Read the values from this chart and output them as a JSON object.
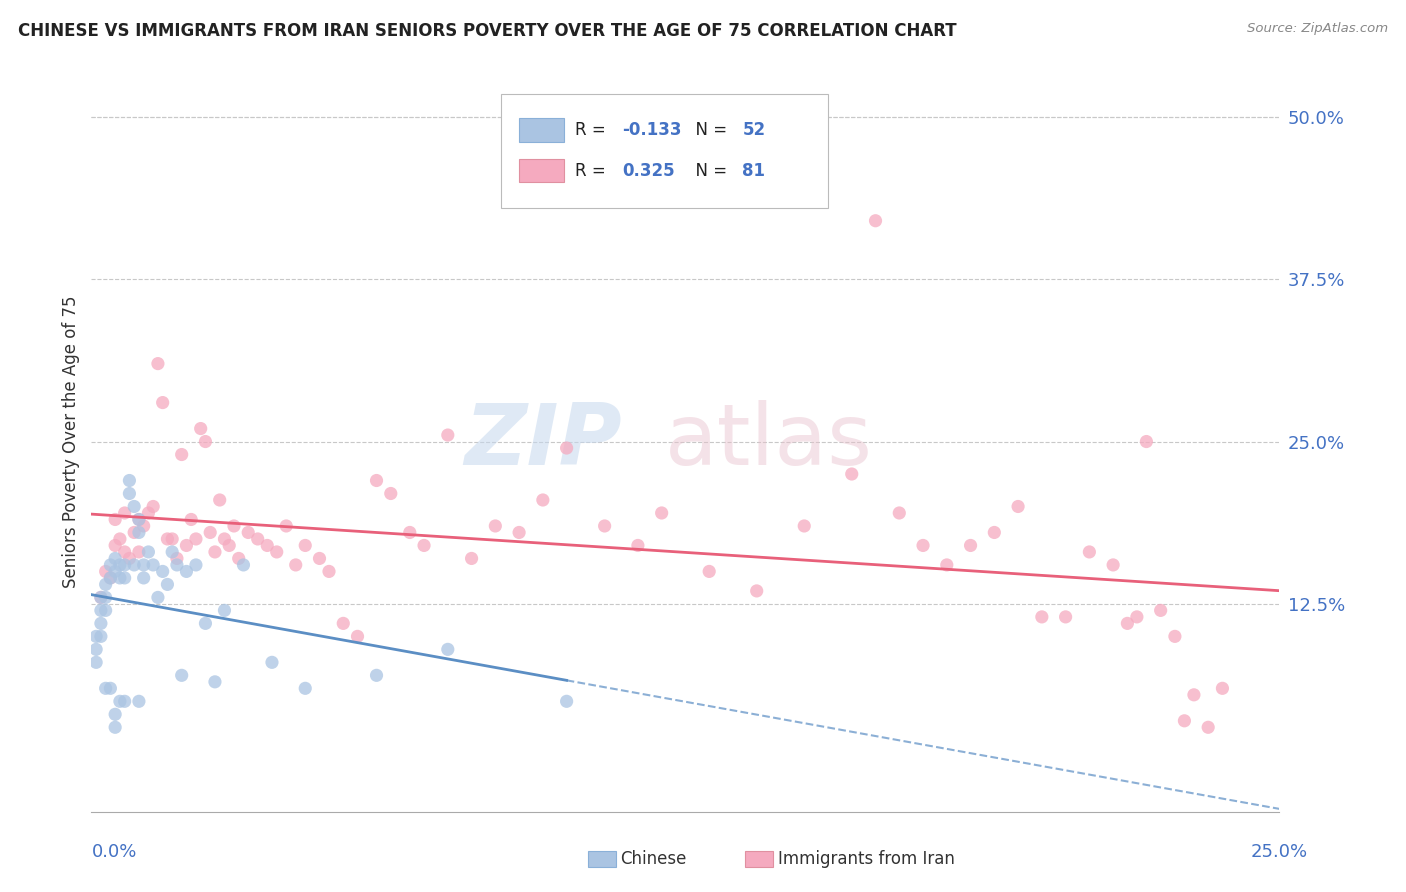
{
  "title": "CHINESE VS IMMIGRANTS FROM IRAN SENIORS POVERTY OVER THE AGE OF 75 CORRELATION CHART",
  "source": "Source: ZipAtlas.com",
  "ylabel": "Seniors Poverty Over the Age of 75",
  "ytick_labels": [
    "50.0%",
    "37.5%",
    "25.0%",
    "12.5%"
  ],
  "ytick_values": [
    0.5,
    0.375,
    0.25,
    0.125
  ],
  "xlim": [
    0.0,
    0.25
  ],
  "ylim": [
    -0.035,
    0.535
  ],
  "legend_chinese_R": "-0.133",
  "legend_chinese_N": "52",
  "legend_iran_R": "0.325",
  "legend_iran_N": "81",
  "chinese_color": "#aac4e2",
  "iran_color": "#f5aabf",
  "chinese_line_color": "#5b8ec4",
  "iran_line_color": "#e8607a",
  "background_color": "#ffffff",
  "grid_color": "#c8c8c8",
  "chinese_scatter_x": [
    0.001,
    0.001,
    0.001,
    0.002,
    0.002,
    0.002,
    0.002,
    0.003,
    0.003,
    0.003,
    0.003,
    0.004,
    0.004,
    0.004,
    0.005,
    0.005,
    0.005,
    0.005,
    0.006,
    0.006,
    0.006,
    0.007,
    0.007,
    0.007,
    0.008,
    0.008,
    0.009,
    0.009,
    0.01,
    0.01,
    0.01,
    0.011,
    0.011,
    0.012,
    0.013,
    0.014,
    0.015,
    0.016,
    0.017,
    0.018,
    0.019,
    0.02,
    0.022,
    0.024,
    0.026,
    0.028,
    0.032,
    0.038,
    0.045,
    0.06,
    0.075,
    0.1
  ],
  "chinese_scatter_y": [
    0.1,
    0.09,
    0.08,
    0.13,
    0.12,
    0.11,
    0.1,
    0.14,
    0.13,
    0.12,
    0.06,
    0.155,
    0.145,
    0.06,
    0.16,
    0.15,
    0.04,
    0.03,
    0.155,
    0.145,
    0.05,
    0.155,
    0.145,
    0.05,
    0.22,
    0.21,
    0.2,
    0.155,
    0.19,
    0.18,
    0.05,
    0.155,
    0.145,
    0.165,
    0.155,
    0.13,
    0.15,
    0.14,
    0.165,
    0.155,
    0.07,
    0.15,
    0.155,
    0.11,
    0.065,
    0.12,
    0.155,
    0.08,
    0.06,
    0.07,
    0.09,
    0.05
  ],
  "iran_scatter_x": [
    0.002,
    0.003,
    0.004,
    0.005,
    0.005,
    0.006,
    0.007,
    0.007,
    0.008,
    0.009,
    0.01,
    0.01,
    0.011,
    0.012,
    0.013,
    0.014,
    0.015,
    0.016,
    0.017,
    0.018,
    0.019,
    0.02,
    0.021,
    0.022,
    0.023,
    0.024,
    0.025,
    0.026,
    0.027,
    0.028,
    0.029,
    0.03,
    0.031,
    0.033,
    0.035,
    0.037,
    0.039,
    0.041,
    0.043,
    0.045,
    0.048,
    0.05,
    0.053,
    0.056,
    0.06,
    0.063,
    0.067,
    0.07,
    0.075,
    0.08,
    0.085,
    0.09,
    0.095,
    0.1,
    0.108,
    0.115,
    0.12,
    0.13,
    0.14,
    0.15,
    0.16,
    0.165,
    0.17,
    0.175,
    0.18,
    0.185,
    0.19,
    0.195,
    0.2,
    0.205,
    0.21,
    0.215,
    0.218,
    0.22,
    0.222,
    0.225,
    0.228,
    0.23,
    0.232,
    0.235,
    0.238
  ],
  "iran_scatter_y": [
    0.13,
    0.15,
    0.145,
    0.19,
    0.17,
    0.175,
    0.195,
    0.165,
    0.16,
    0.18,
    0.19,
    0.165,
    0.185,
    0.195,
    0.2,
    0.31,
    0.28,
    0.175,
    0.175,
    0.16,
    0.24,
    0.17,
    0.19,
    0.175,
    0.26,
    0.25,
    0.18,
    0.165,
    0.205,
    0.175,
    0.17,
    0.185,
    0.16,
    0.18,
    0.175,
    0.17,
    0.165,
    0.185,
    0.155,
    0.17,
    0.16,
    0.15,
    0.11,
    0.1,
    0.22,
    0.21,
    0.18,
    0.17,
    0.255,
    0.16,
    0.185,
    0.18,
    0.205,
    0.245,
    0.185,
    0.17,
    0.195,
    0.15,
    0.135,
    0.185,
    0.225,
    0.42,
    0.195,
    0.17,
    0.155,
    0.17,
    0.18,
    0.2,
    0.115,
    0.115,
    0.165,
    0.155,
    0.11,
    0.115,
    0.25,
    0.12,
    0.1,
    0.035,
    0.055,
    0.03,
    0.06
  ]
}
